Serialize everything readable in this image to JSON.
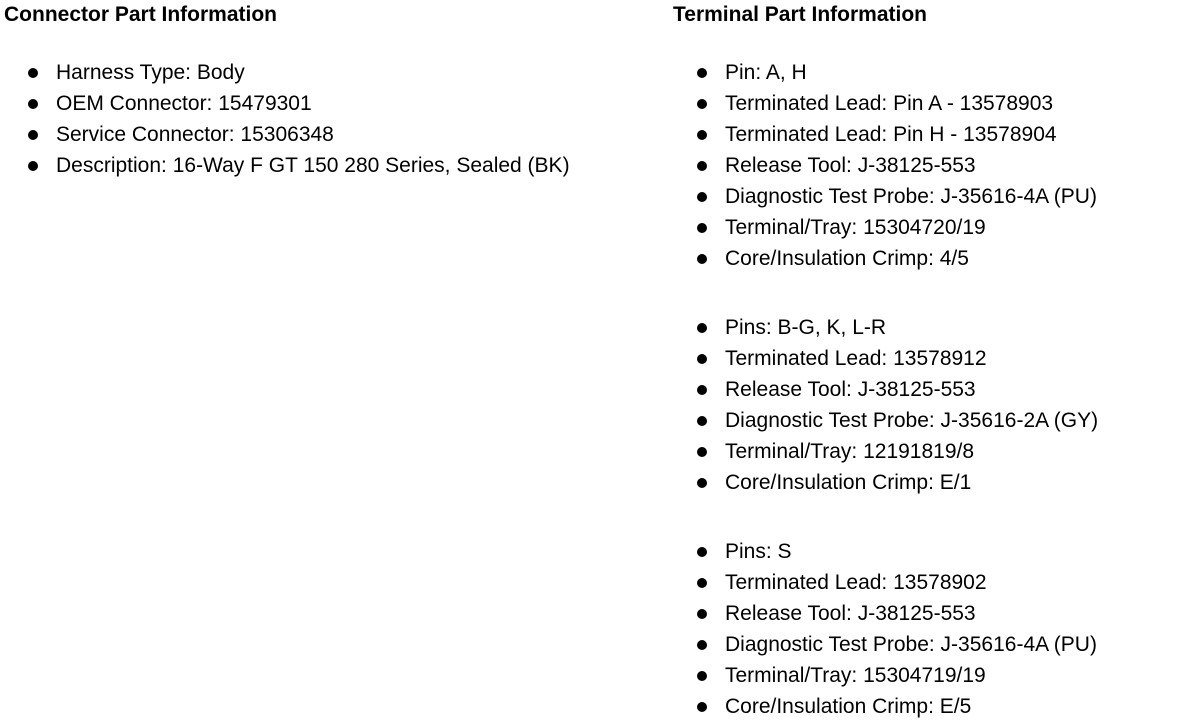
{
  "connector": {
    "title": "Connector Part Information",
    "items": [
      "Harness Type: Body",
      "OEM Connector: 15479301",
      "Service Connector: 15306348",
      "Description: 16-Way F GT 150 280 Series, Sealed (BK)"
    ]
  },
  "terminal": {
    "title": "Terminal Part Information",
    "groups": [
      {
        "items": [
          "Pin: A, H",
          "Terminated Lead: Pin A - 13578903",
          "Terminated Lead: Pin H - 13578904",
          "Release Tool: J-38125-553",
          "Diagnostic Test Probe: J-35616-4A (PU)",
          "Terminal/Tray: 15304720/19",
          "Core/Insulation Crimp: 4/5"
        ]
      },
      {
        "items": [
          "Pins: B-G, K, L-R",
          "Terminated Lead: 13578912",
          "Release Tool: J-38125-553",
          "Diagnostic Test Probe: J-35616-2A (GY)",
          "Terminal/Tray: 12191819/8",
          "Core/Insulation Crimp: E/1"
        ]
      },
      {
        "items": [
          "Pins: S",
          "Terminated Lead: 13578902",
          "Release Tool: J-38125-553",
          "Diagnostic Test Probe: J-35616-4A (PU)",
          "Terminal/Tray: 15304719/19",
          "Core/Insulation Crimp: E/5"
        ]
      }
    ],
    "text_color": "#000000",
    "background_color": "#ffffff"
  }
}
